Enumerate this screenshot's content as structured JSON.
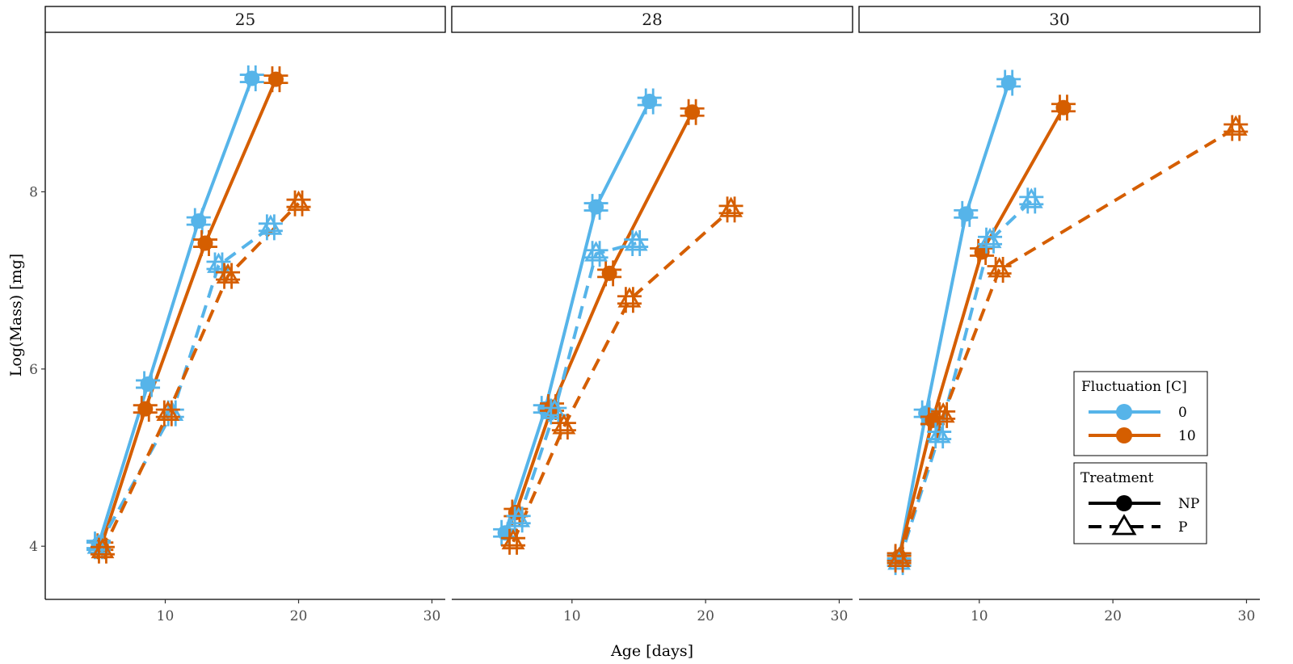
{
  "chart_data": {
    "type": "line",
    "xlabel": "Age [days]",
    "ylabel": "Log(Mass) [mg]",
    "xlim": [
      1,
      31
    ],
    "ylim": [
      3.4,
      9.8
    ],
    "xticks": [
      10,
      20,
      30
    ],
    "yticks": [
      4,
      6,
      8
    ],
    "grid": false,
    "legend_placement": "right, inside last panel",
    "legends": [
      {
        "title": "Fluctuation [C]",
        "entries": [
          {
            "label": "0",
            "color": "#56B4E9"
          },
          {
            "label": "10",
            "color": "#D55E00"
          }
        ]
      },
      {
        "title": "Treatment",
        "entries": [
          {
            "label": "NP",
            "linestyle": "solid",
            "marker": "circle"
          },
          {
            "label": "P",
            "linestyle": "dashed",
            "marker": "triangle"
          }
        ]
      }
    ],
    "panels": [
      {
        "strip": "25",
        "series": [
          {
            "fluctuation": "0",
            "treatment": "NP",
            "x": [
              5.0,
              8.7,
              12.5,
              16.5
            ],
            "y": [
              4.02,
              5.83,
              7.67,
              9.28
            ]
          },
          {
            "fluctuation": "10",
            "treatment": "NP",
            "x": [
              5.2,
              8.5,
              13.0,
              18.3
            ],
            "y": [
              4.0,
              5.55,
              7.42,
              9.27
            ]
          },
          {
            "fluctuation": "0",
            "treatment": "P",
            "x": [
              5.0,
              10.5,
              14.0,
              17.9
            ],
            "y": [
              4.0,
              5.5,
              7.17,
              7.6
            ]
          },
          {
            "fluctuation": "10",
            "treatment": "P",
            "x": [
              5.3,
              10.2,
              14.7,
              20.0
            ],
            "y": [
              3.95,
              5.5,
              7.05,
              7.87
            ]
          }
        ]
      },
      {
        "strip": "28",
        "series": [
          {
            "fluctuation": "0",
            "treatment": "NP",
            "x": [
              5.0,
              8.0,
              11.8,
              15.8
            ],
            "y": [
              4.15,
              5.55,
              7.83,
              9.02
            ]
          },
          {
            "fluctuation": "10",
            "treatment": "NP",
            "x": [
              5.8,
              8.5,
              12.8,
              19.0
            ],
            "y": [
              4.38,
              5.57,
              7.08,
              8.9
            ]
          },
          {
            "fluctuation": "0",
            "treatment": "P",
            "x": [
              6.0,
              8.7,
              11.8,
              14.8
            ],
            "y": [
              4.3,
              5.52,
              7.3,
              7.42
            ]
          },
          {
            "fluctuation": "10",
            "treatment": "P",
            "x": [
              5.6,
              9.4,
              14.3,
              21.9
            ],
            "y": [
              4.05,
              5.35,
              6.78,
              7.8
            ]
          }
        ]
      },
      {
        "strip": "30",
        "series": [
          {
            "fluctuation": "0",
            "treatment": "NP",
            "x": [
              4.0,
              6.0,
              9.0,
              12.2
            ],
            "y": [
              3.87,
              5.5,
              7.75,
              9.23
            ]
          },
          {
            "fluctuation": "10",
            "treatment": "NP",
            "x": [
              4.0,
              6.5,
              10.2,
              16.3
            ],
            "y": [
              3.88,
              5.42,
              7.32,
              8.95
            ]
          },
          {
            "fluctuation": "0",
            "treatment": "P",
            "x": [
              4.0,
              7.0,
              10.8,
              13.9
            ],
            "y": [
              3.82,
              5.25,
              7.45,
              7.9
            ]
          },
          {
            "fluctuation": "10",
            "treatment": "P",
            "x": [
              4.0,
              7.3,
              11.5,
              29.2
            ],
            "y": [
              3.85,
              5.48,
              7.12,
              8.72
            ]
          }
        ]
      }
    ]
  }
}
